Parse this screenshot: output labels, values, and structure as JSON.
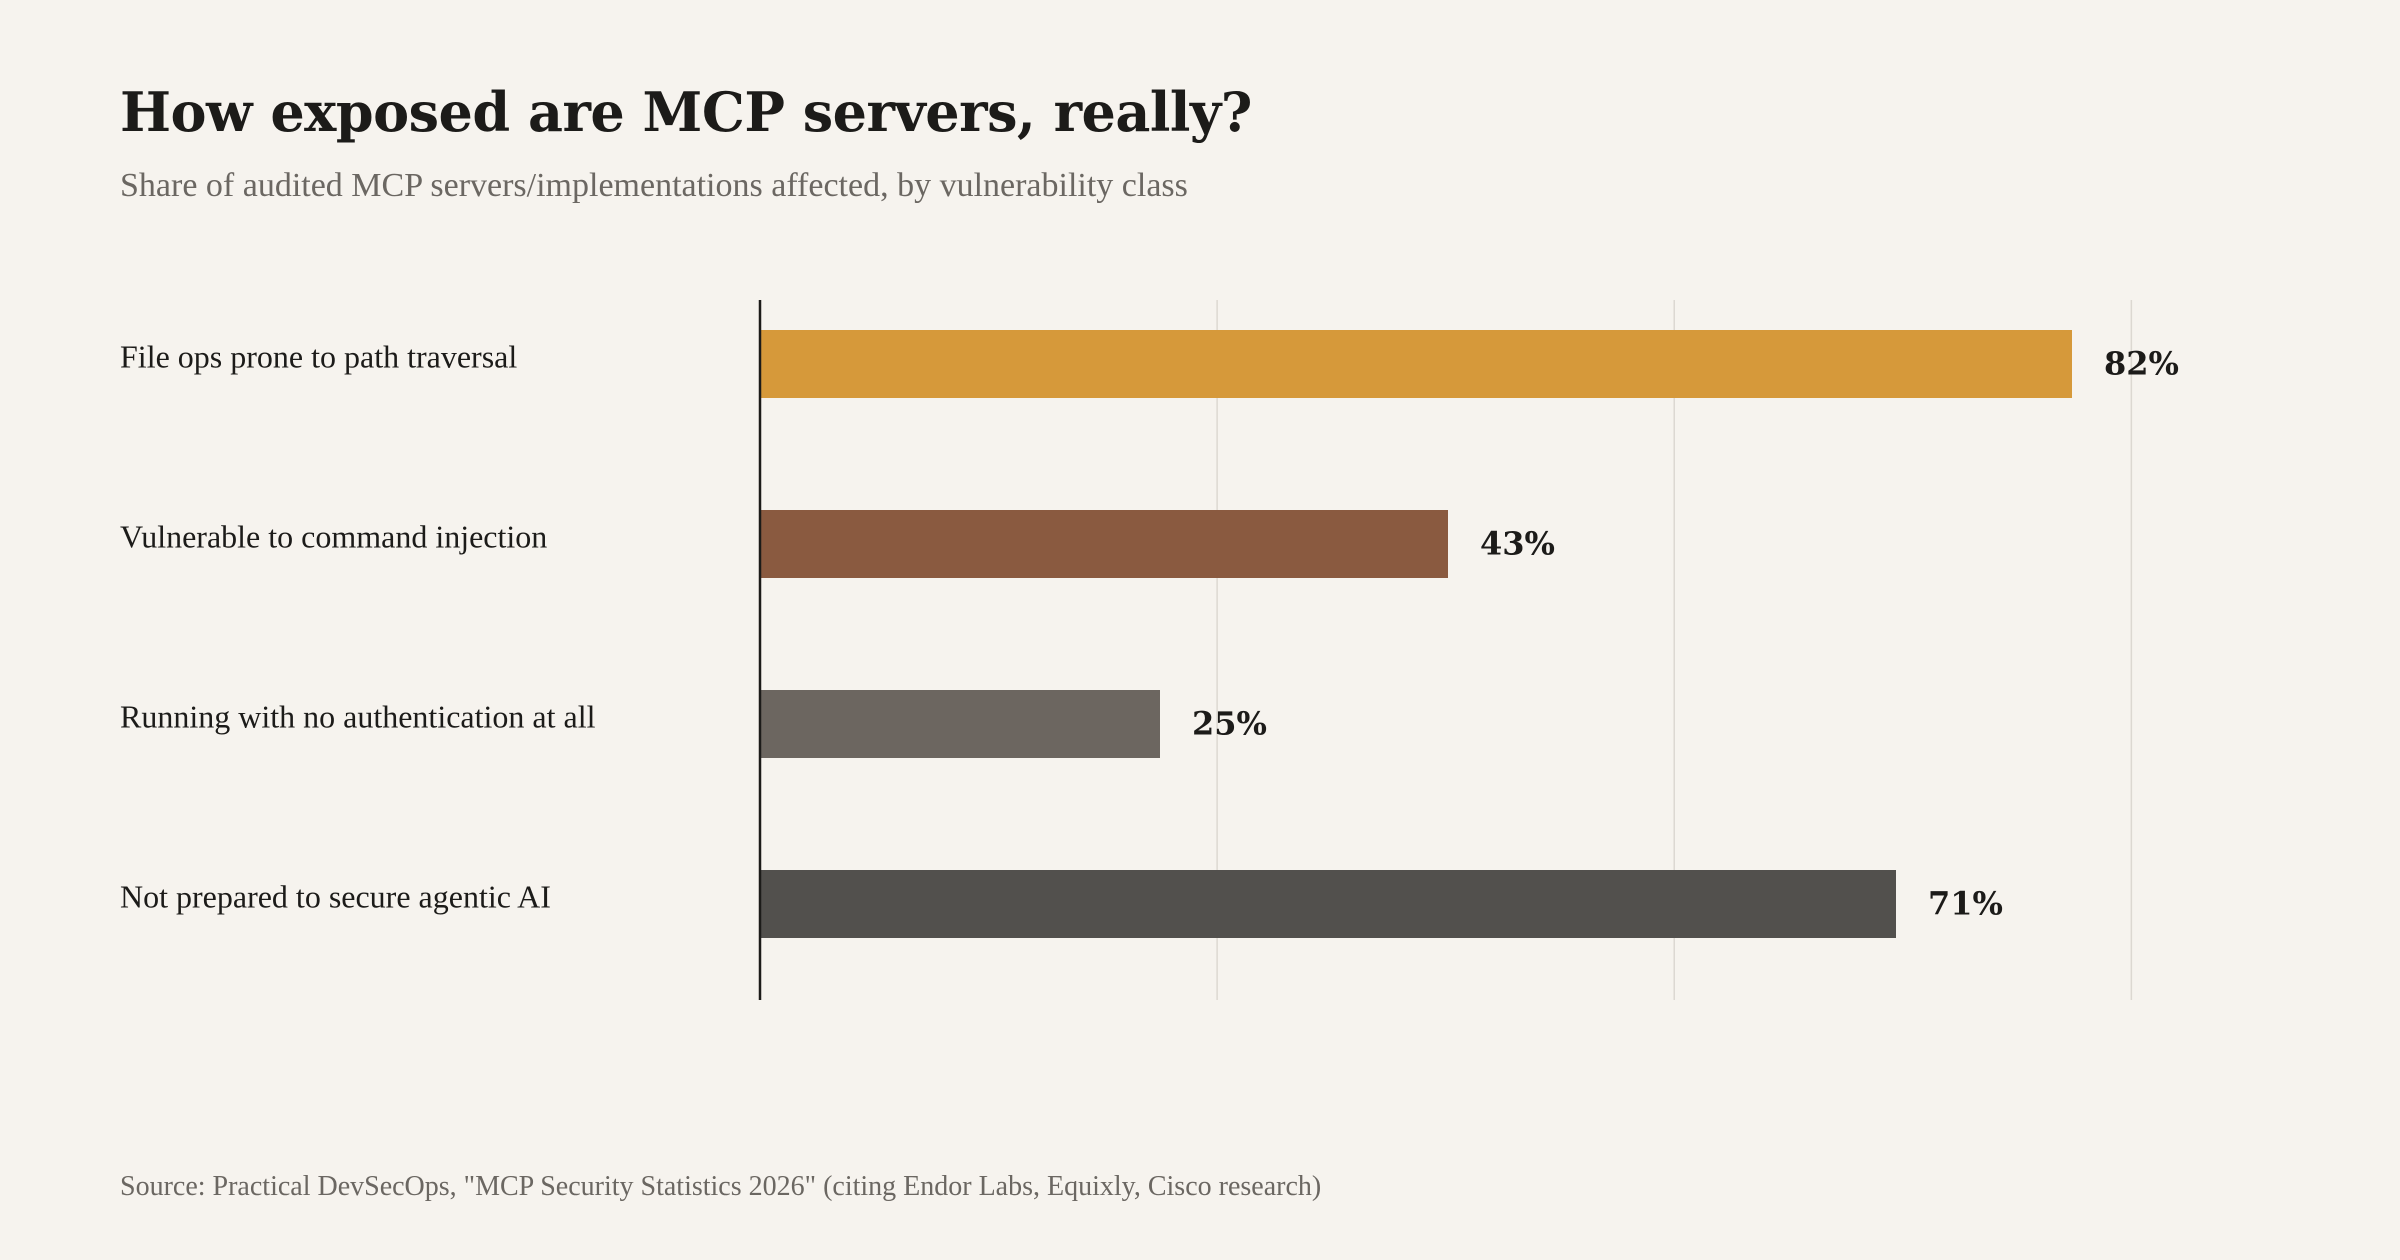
{
  "title": "How exposed are MCP servers, really?",
  "subtitle": "Share of audited MCP servers/implementations affected, by vulnerability class",
  "source": "Source: Practical DevSecOps, \"MCP Security Statistics 2026\" (citing Endor Labs, Equixly, Cisco research)",
  "chart_data": {
    "type": "bar",
    "orientation": "horizontal",
    "categories": [
      "File ops prone to path traversal",
      "Vulnerable to command injection",
      "Running with no authentication at all",
      "Not prepared to secure agentic AI"
    ],
    "values": [
      82,
      43,
      25,
      71
    ],
    "value_labels": [
      "82%",
      "43%",
      "25%",
      "71%"
    ],
    "colors": [
      "#d6993a",
      "#8a5a40",
      "#6c6660",
      "#52504d"
    ],
    "xlim": [
      0,
      100
    ],
    "gridlines_at": [
      28.57,
      57.14,
      85.71
    ],
    "grid": true,
    "legend": "none",
    "title": "How exposed are MCP servers, really?",
    "subtitle": "Share of audited MCP servers/implementations affected, by vulnerability class",
    "xlabel": "",
    "ylabel": ""
  }
}
